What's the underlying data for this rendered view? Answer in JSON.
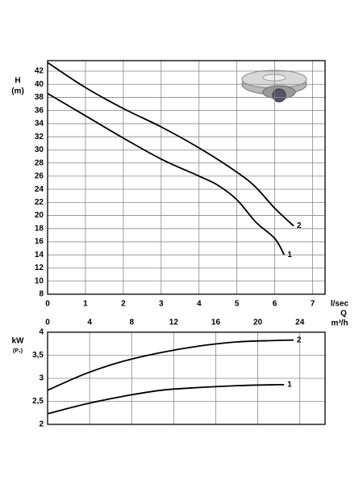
{
  "chart_data": [
    {
      "type": "line",
      "y_label": "H",
      "y_unit": "(m)",
      "x_unit": "l/sec",
      "x_label": "Q",
      "xlim": [
        0,
        7.33
      ],
      "xticks": [
        0,
        1,
        2,
        3,
        4,
        5,
        6,
        7
      ],
      "ylim": [
        8,
        43.6
      ],
      "yticks": [
        8,
        10,
        12,
        14,
        16,
        18,
        20,
        22,
        24,
        26,
        28,
        30,
        32,
        34,
        36,
        38,
        40,
        42
      ],
      "grid": true,
      "series": [
        {
          "name": "1",
          "color": "#000000",
          "x": [
            0,
            1,
            2,
            3,
            4,
            4.5,
            5,
            5.5,
            6,
            6.25
          ],
          "values": [
            38.6,
            35.2,
            31.8,
            28.6,
            26,
            24.6,
            22.4,
            19,
            16.5,
            14
          ]
        },
        {
          "name": "2",
          "color": "#000000",
          "x": [
            0,
            1,
            2,
            3,
            4,
            5,
            5.5,
            6,
            6.5
          ],
          "values": [
            43.3,
            39.5,
            36.3,
            33.5,
            30.3,
            26.6,
            24.3,
            21.1,
            18.4
          ]
        }
      ]
    },
    {
      "type": "line",
      "y_label": "kW",
      "y_unit": "(P₁)",
      "x_unit": "m³/h",
      "xlim": [
        0,
        26.4
      ],
      "xticks": [
        0,
        4,
        8,
        12,
        16,
        20,
        24
      ],
      "ylim": [
        2,
        4
      ],
      "yticks": [
        4,
        {
          "value": 3.5,
          "label": "3,5"
        },
        3,
        {
          "value": 2.5,
          "label": "2,5"
        },
        2
      ],
      "grid": true,
      "series": [
        {
          "name": "1",
          "color": "#000000",
          "x": [
            0,
            3.6,
            7.2,
            10.8,
            14.4,
            18,
            21.6,
            22.5
          ],
          "values": [
            2.23,
            2.44,
            2.61,
            2.74,
            2.8,
            2.84,
            2.86,
            2.86
          ]
        },
        {
          "name": "2",
          "color": "#000000",
          "x": [
            0,
            3.6,
            7.2,
            10.8,
            14.4,
            18,
            21.6,
            23.4
          ],
          "values": [
            2.74,
            3.1,
            3.37,
            3.56,
            3.7,
            3.79,
            3.82,
            3.83
          ]
        }
      ]
    }
  ]
}
